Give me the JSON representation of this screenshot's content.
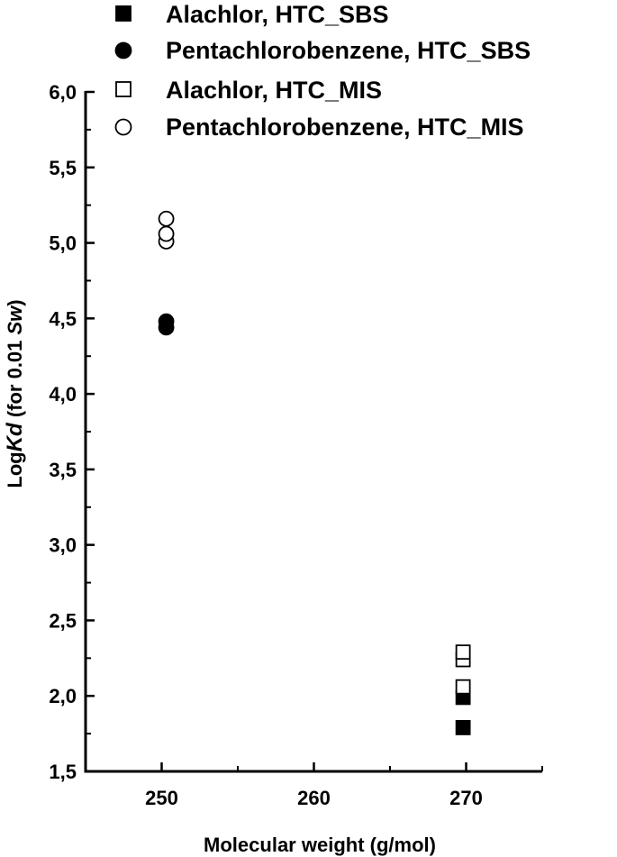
{
  "chart_data": {
    "type": "scatter",
    "title": "",
    "xlabel": "Molecular weight (g/mol)",
    "ylabel": {
      "prefix": "Log",
      "italic_1": "Kd",
      "middle": " (for 0.01 ",
      "italic_2": "Sw",
      "suffix": ")"
    },
    "xlim": [
      245,
      275
    ],
    "ylim": [
      1.5,
      6.0
    ],
    "x_ticks": [
      {
        "value": 250,
        "label": "250"
      },
      {
        "value": 260,
        "label": "260"
      },
      {
        "value": 270,
        "label": "270"
      }
    ],
    "y_ticks": [
      {
        "value": 1.5,
        "label": "1,5"
      },
      {
        "value": 2.0,
        "label": "2,0"
      },
      {
        "value": 2.5,
        "label": "2,5"
      },
      {
        "value": 3.0,
        "label": "3,0"
      },
      {
        "value": 3.5,
        "label": "3,5"
      },
      {
        "value": 4.0,
        "label": "4,0"
      },
      {
        "value": 4.5,
        "label": "4,5"
      },
      {
        "value": 5.0,
        "label": "5,0"
      },
      {
        "value": 5.5,
        "label": "5,5"
      },
      {
        "value": 6.0,
        "label": "6,0"
      }
    ],
    "grid": false,
    "legend_position": "top",
    "series": [
      {
        "name": "Alachlor, HTC_SBS",
        "marker": "square",
        "filled": true,
        "points": [
          {
            "x": 269.8,
            "y": 1.79
          },
          {
            "x": 269.8,
            "y": 1.99
          }
        ]
      },
      {
        "name": "Pentachlorobenzene, HTC_SBS",
        "marker": "circle",
        "filled": true,
        "points": [
          {
            "x": 250.3,
            "y": 4.44
          },
          {
            "x": 250.3,
            "y": 4.48
          }
        ]
      },
      {
        "name": "Alachlor, HTC_MIS",
        "marker": "square",
        "filled": false,
        "points": [
          {
            "x": 269.8,
            "y": 2.06
          },
          {
            "x": 269.8,
            "y": 2.24
          },
          {
            "x": 269.8,
            "y": 2.29
          }
        ]
      },
      {
        "name": "Pentachlorobenzene, HTC_MIS",
        "marker": "circle",
        "filled": false,
        "points": [
          {
            "x": 250.3,
            "y": 5.01
          },
          {
            "x": 250.3,
            "y": 5.06
          },
          {
            "x": 250.3,
            "y": 5.16
          }
        ]
      }
    ]
  }
}
